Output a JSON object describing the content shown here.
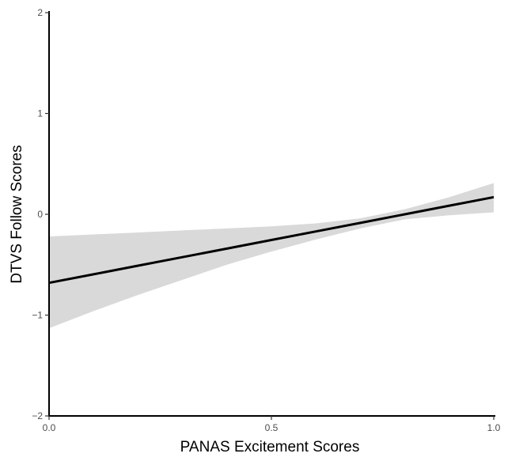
{
  "chart_data": {
    "type": "line",
    "title": "",
    "xlabel": "PANAS Excitement Scores",
    "ylabel": "DTVS Follow Scores",
    "xlim": [
      0,
      1
    ],
    "ylim": [
      -2,
      2
    ],
    "x_ticks": [
      {
        "value": 0,
        "label": "0.0"
      },
      {
        "value": 0.5,
        "label": "0.5"
      },
      {
        "value": 1,
        "label": "1.0"
      }
    ],
    "y_ticks": [
      {
        "value": -2,
        "label": "−2"
      },
      {
        "value": -1,
        "label": "−1"
      },
      {
        "value": 0,
        "label": "0"
      },
      {
        "value": 1,
        "label": "1"
      },
      {
        "value": 2,
        "label": "2"
      }
    ],
    "grid": false,
    "legend": "none",
    "series": [
      {
        "x": [
          0,
          0.1,
          0.2,
          0.3,
          0.4,
          0.5,
          0.6,
          0.7,
          0.8,
          0.9,
          1.0
        ],
        "y": [
          -0.68,
          -0.595,
          -0.51,
          -0.425,
          -0.34,
          -0.255,
          -0.17,
          -0.085,
          0.0,
          0.085,
          0.17
        ],
        "lower": [
          -1.13,
          -0.96,
          -0.8,
          -0.65,
          -0.5,
          -0.37,
          -0.25,
          -0.14,
          -0.05,
          -0.01,
          0.02
        ],
        "upper": [
          -0.22,
          -0.2,
          -0.18,
          -0.16,
          -0.14,
          -0.12,
          -0.09,
          -0.04,
          0.05,
          0.17,
          0.31
        ],
        "color": "#000000",
        "band_color": "#d9d9d9"
      }
    ]
  }
}
